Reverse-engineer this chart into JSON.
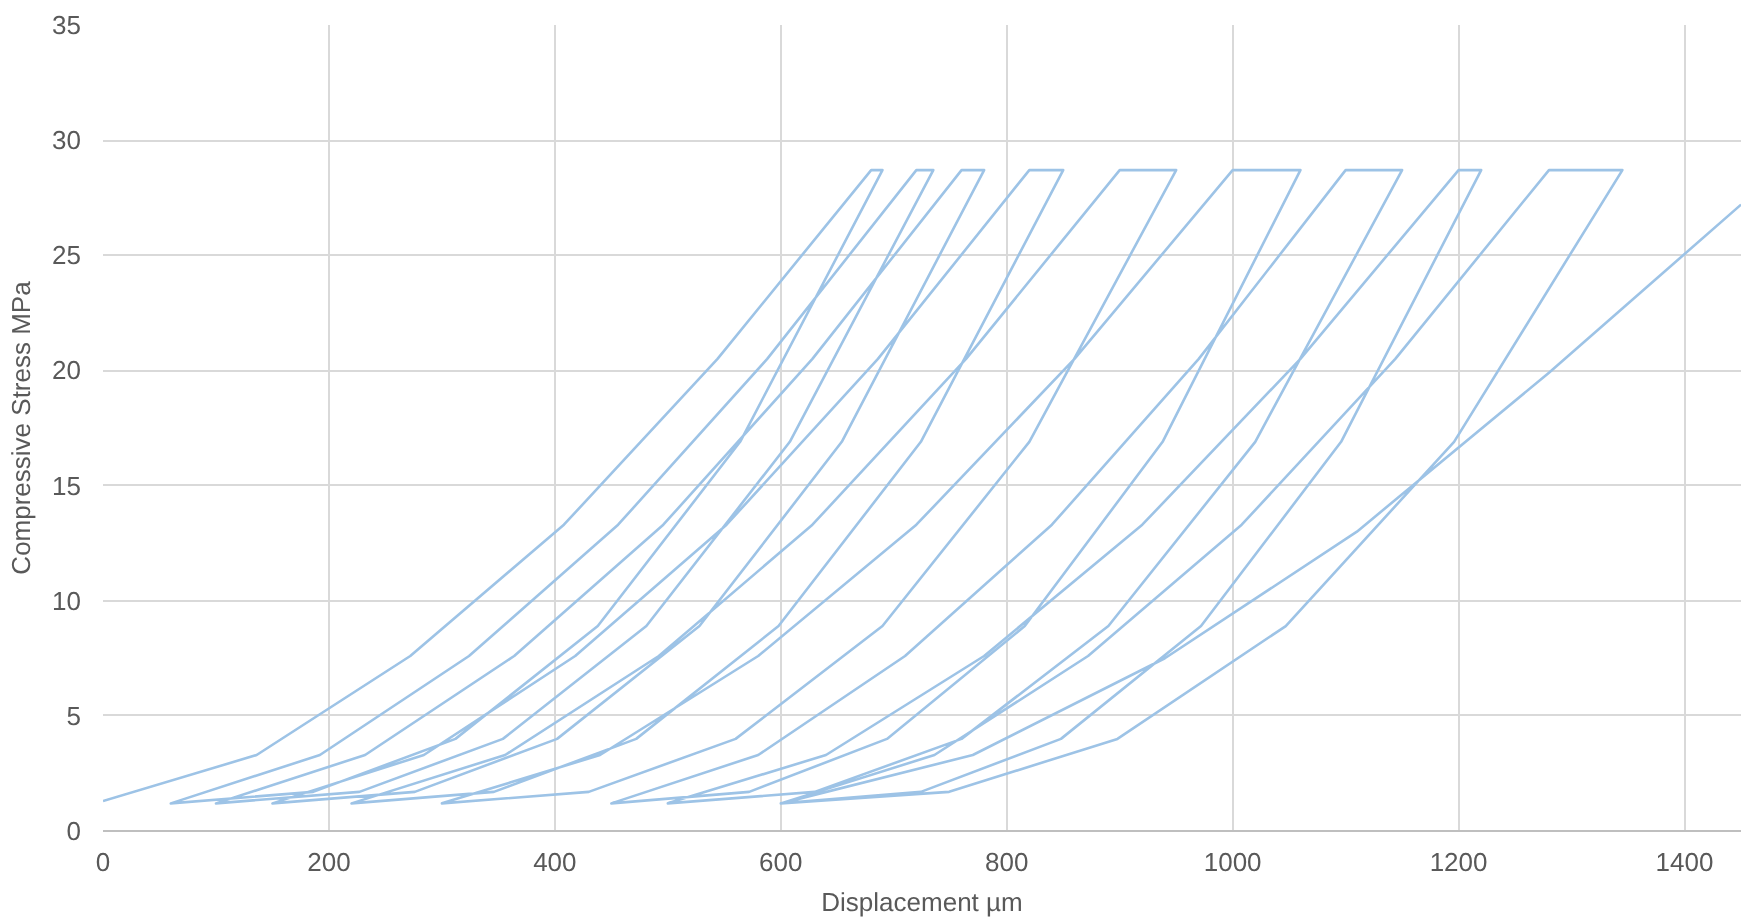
{
  "chart_data": {
    "type": "line",
    "xlabel": "Displacement µm",
    "ylabel": "Compressive Stress MPa",
    "xlim": [
      0,
      1450
    ],
    "ylim": [
      0,
      35
    ],
    "xticks": [
      0,
      200,
      400,
      600,
      800,
      1000,
      1200,
      1400
    ],
    "yticks": [
      0,
      5,
      10,
      15,
      20,
      25,
      30,
      35
    ],
    "grid": true,
    "line_style": "solid",
    "series": [
      {
        "color": "#9dc3e6",
        "x": [
          0,
          136,
          272,
          408,
          544,
          680,
          690,
          564,
          438,
          312,
          186,
          60,
          192,
          324,
          456,
          588,
          720,
          735,
          608,
          481,
          354,
          227,
          100,
          232,
          364,
          496,
          628,
          760,
          780,
          654,
          528,
          402,
          276,
          150,
          284,
          418,
          552,
          686,
          820,
          850,
          724,
          598,
          472,
          346,
          220,
          356,
          492,
          628,
          764,
          900,
          950,
          820,
          690,
          560,
          430,
          300,
          440,
          580,
          720,
          860,
          1000,
          1060,
          938,
          816,
          694,
          572,
          450,
          580,
          710,
          840,
          970,
          1100,
          1150,
          1020,
          890,
          760,
          630,
          500,
          640,
          780,
          920,
          1060,
          1200,
          1220,
          1096,
          972,
          848,
          724,
          600,
          736,
          872,
          1008,
          1144,
          1280,
          1345,
          1196,
          1047,
          898,
          749,
          600,
          770,
          940,
          1110,
          1280,
          1450
        ],
        "values": [
          1.3,
          3.3,
          7.6,
          13.3,
          20.5,
          28.7,
          28.7,
          16.9,
          8.9,
          4.0,
          1.7,
          1.2,
          3.3,
          7.6,
          13.3,
          20.5,
          28.7,
          28.7,
          16.9,
          8.9,
          4.0,
          1.7,
          1.2,
          3.3,
          7.6,
          13.3,
          20.5,
          28.7,
          28.7,
          16.9,
          8.9,
          4.0,
          1.7,
          1.2,
          3.3,
          7.6,
          13.3,
          20.5,
          28.7,
          28.7,
          16.9,
          8.9,
          4.0,
          1.7,
          1.2,
          3.3,
          7.6,
          13.3,
          20.5,
          28.7,
          28.7,
          16.9,
          8.9,
          4.0,
          1.7,
          1.2,
          3.3,
          7.6,
          13.3,
          20.5,
          28.7,
          28.7,
          16.9,
          8.9,
          4.0,
          1.7,
          1.2,
          3.3,
          7.6,
          13.3,
          20.5,
          28.7,
          28.7,
          16.9,
          8.9,
          4.0,
          1.7,
          1.2,
          3.3,
          7.6,
          13.3,
          20.5,
          28.7,
          28.7,
          16.9,
          8.9,
          4.0,
          1.7,
          1.2,
          3.3,
          7.6,
          13.3,
          20.5,
          28.7,
          28.7,
          16.9,
          8.9,
          4.0,
          1.7,
          1.2,
          3.3,
          7.5,
          13.0,
          19.9,
          27.2
        ]
      }
    ]
  }
}
